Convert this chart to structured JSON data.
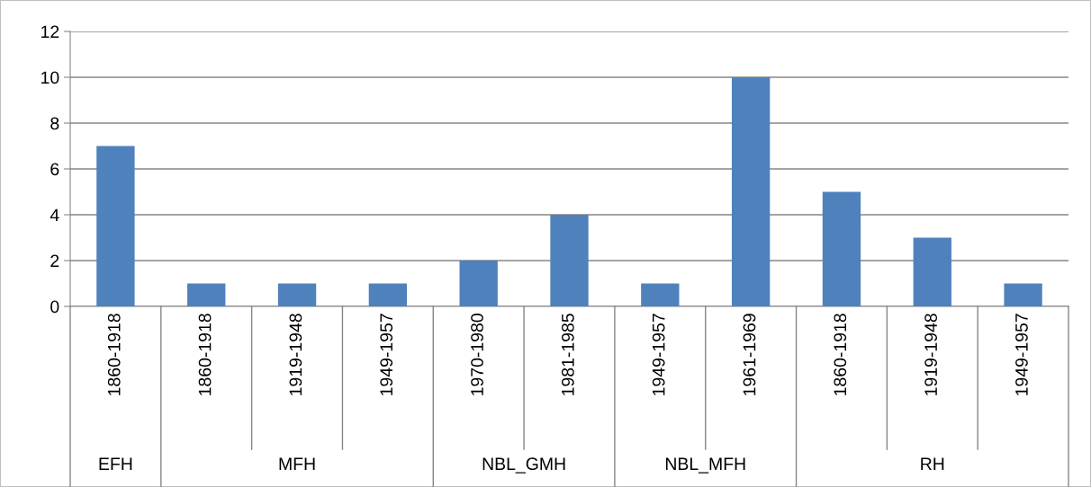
{
  "chart_data": {
    "type": "bar",
    "categories": [
      "1860-1918",
      "1860-1918",
      "1919-1948",
      "1949-1957",
      "1970-1980",
      "1981-1985",
      "1949-1957",
      "1961-1969",
      "1860-1918",
      "1919-1948",
      "1949-1957"
    ],
    "values": [
      7,
      1,
      1,
      1,
      2,
      4,
      1,
      10,
      5,
      3,
      1
    ],
    "color": "#4f81bd",
    "ylim": [
      0,
      12
    ],
    "yticks": [
      0,
      2,
      4,
      6,
      8,
      10,
      12
    ],
    "grid": "y",
    "annotations": [
      "EFH",
      "MFH",
      "NBL_GMH",
      "NBL_MFH",
      "RH"
    ]
  }
}
